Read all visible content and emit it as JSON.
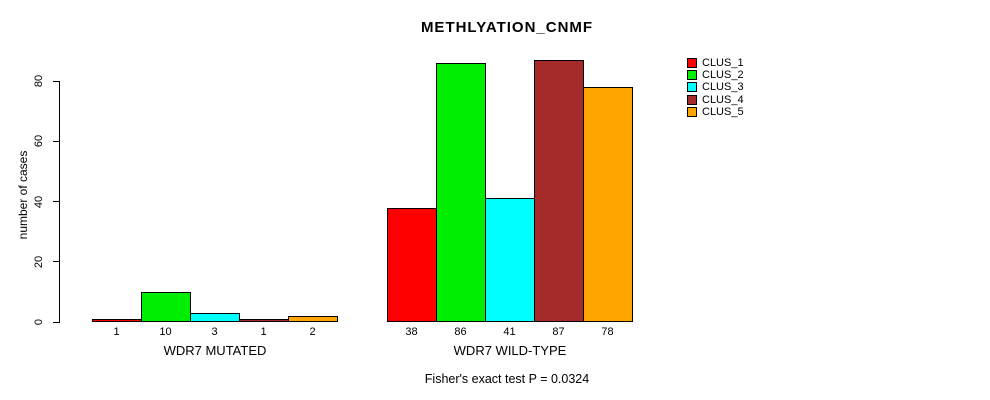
{
  "title": "METHLYATION_CNMF",
  "y_axis": {
    "label": "number of cases",
    "ticks": [
      0,
      20,
      40,
      60,
      80
    ]
  },
  "footer": "Fisher's exact test P = 0.0324",
  "legend": [
    {
      "label": "CLUS_1",
      "color": "#FF0000"
    },
    {
      "label": "CLUS_2",
      "color": "#00EE00"
    },
    {
      "label": "CLUS_3",
      "color": "#00FFFF"
    },
    {
      "label": "CLUS_4",
      "color": "#A52A2A"
    },
    {
      "label": "CLUS_5",
      "color": "#FFA500"
    }
  ],
  "chart_data": {
    "type": "bar",
    "title": "METHLYATION_CNMF",
    "ylabel": "number of cases",
    "ylim": [
      0,
      87
    ],
    "grid": false,
    "legend_position": "top-right",
    "bar_value_labels_shown": true,
    "categories": [
      "WDR7 MUTATED",
      "WDR7 WILD-TYPE"
    ],
    "series": [
      {
        "name": "CLUS_1",
        "color": "#FF0000",
        "values": [
          1,
          38
        ]
      },
      {
        "name": "CLUS_2",
        "color": "#00EE00",
        "values": [
          10,
          86
        ]
      },
      {
        "name": "CLUS_3",
        "color": "#00FFFF",
        "values": [
          3,
          41
        ]
      },
      {
        "name": "CLUS_4",
        "color": "#A52A2A",
        "values": [
          1,
          87
        ]
      },
      {
        "name": "CLUS_5",
        "color": "#FFA500",
        "values": [
          2,
          78
        ]
      }
    ],
    "annotation": "Fisher's exact test P = 0.0324"
  }
}
